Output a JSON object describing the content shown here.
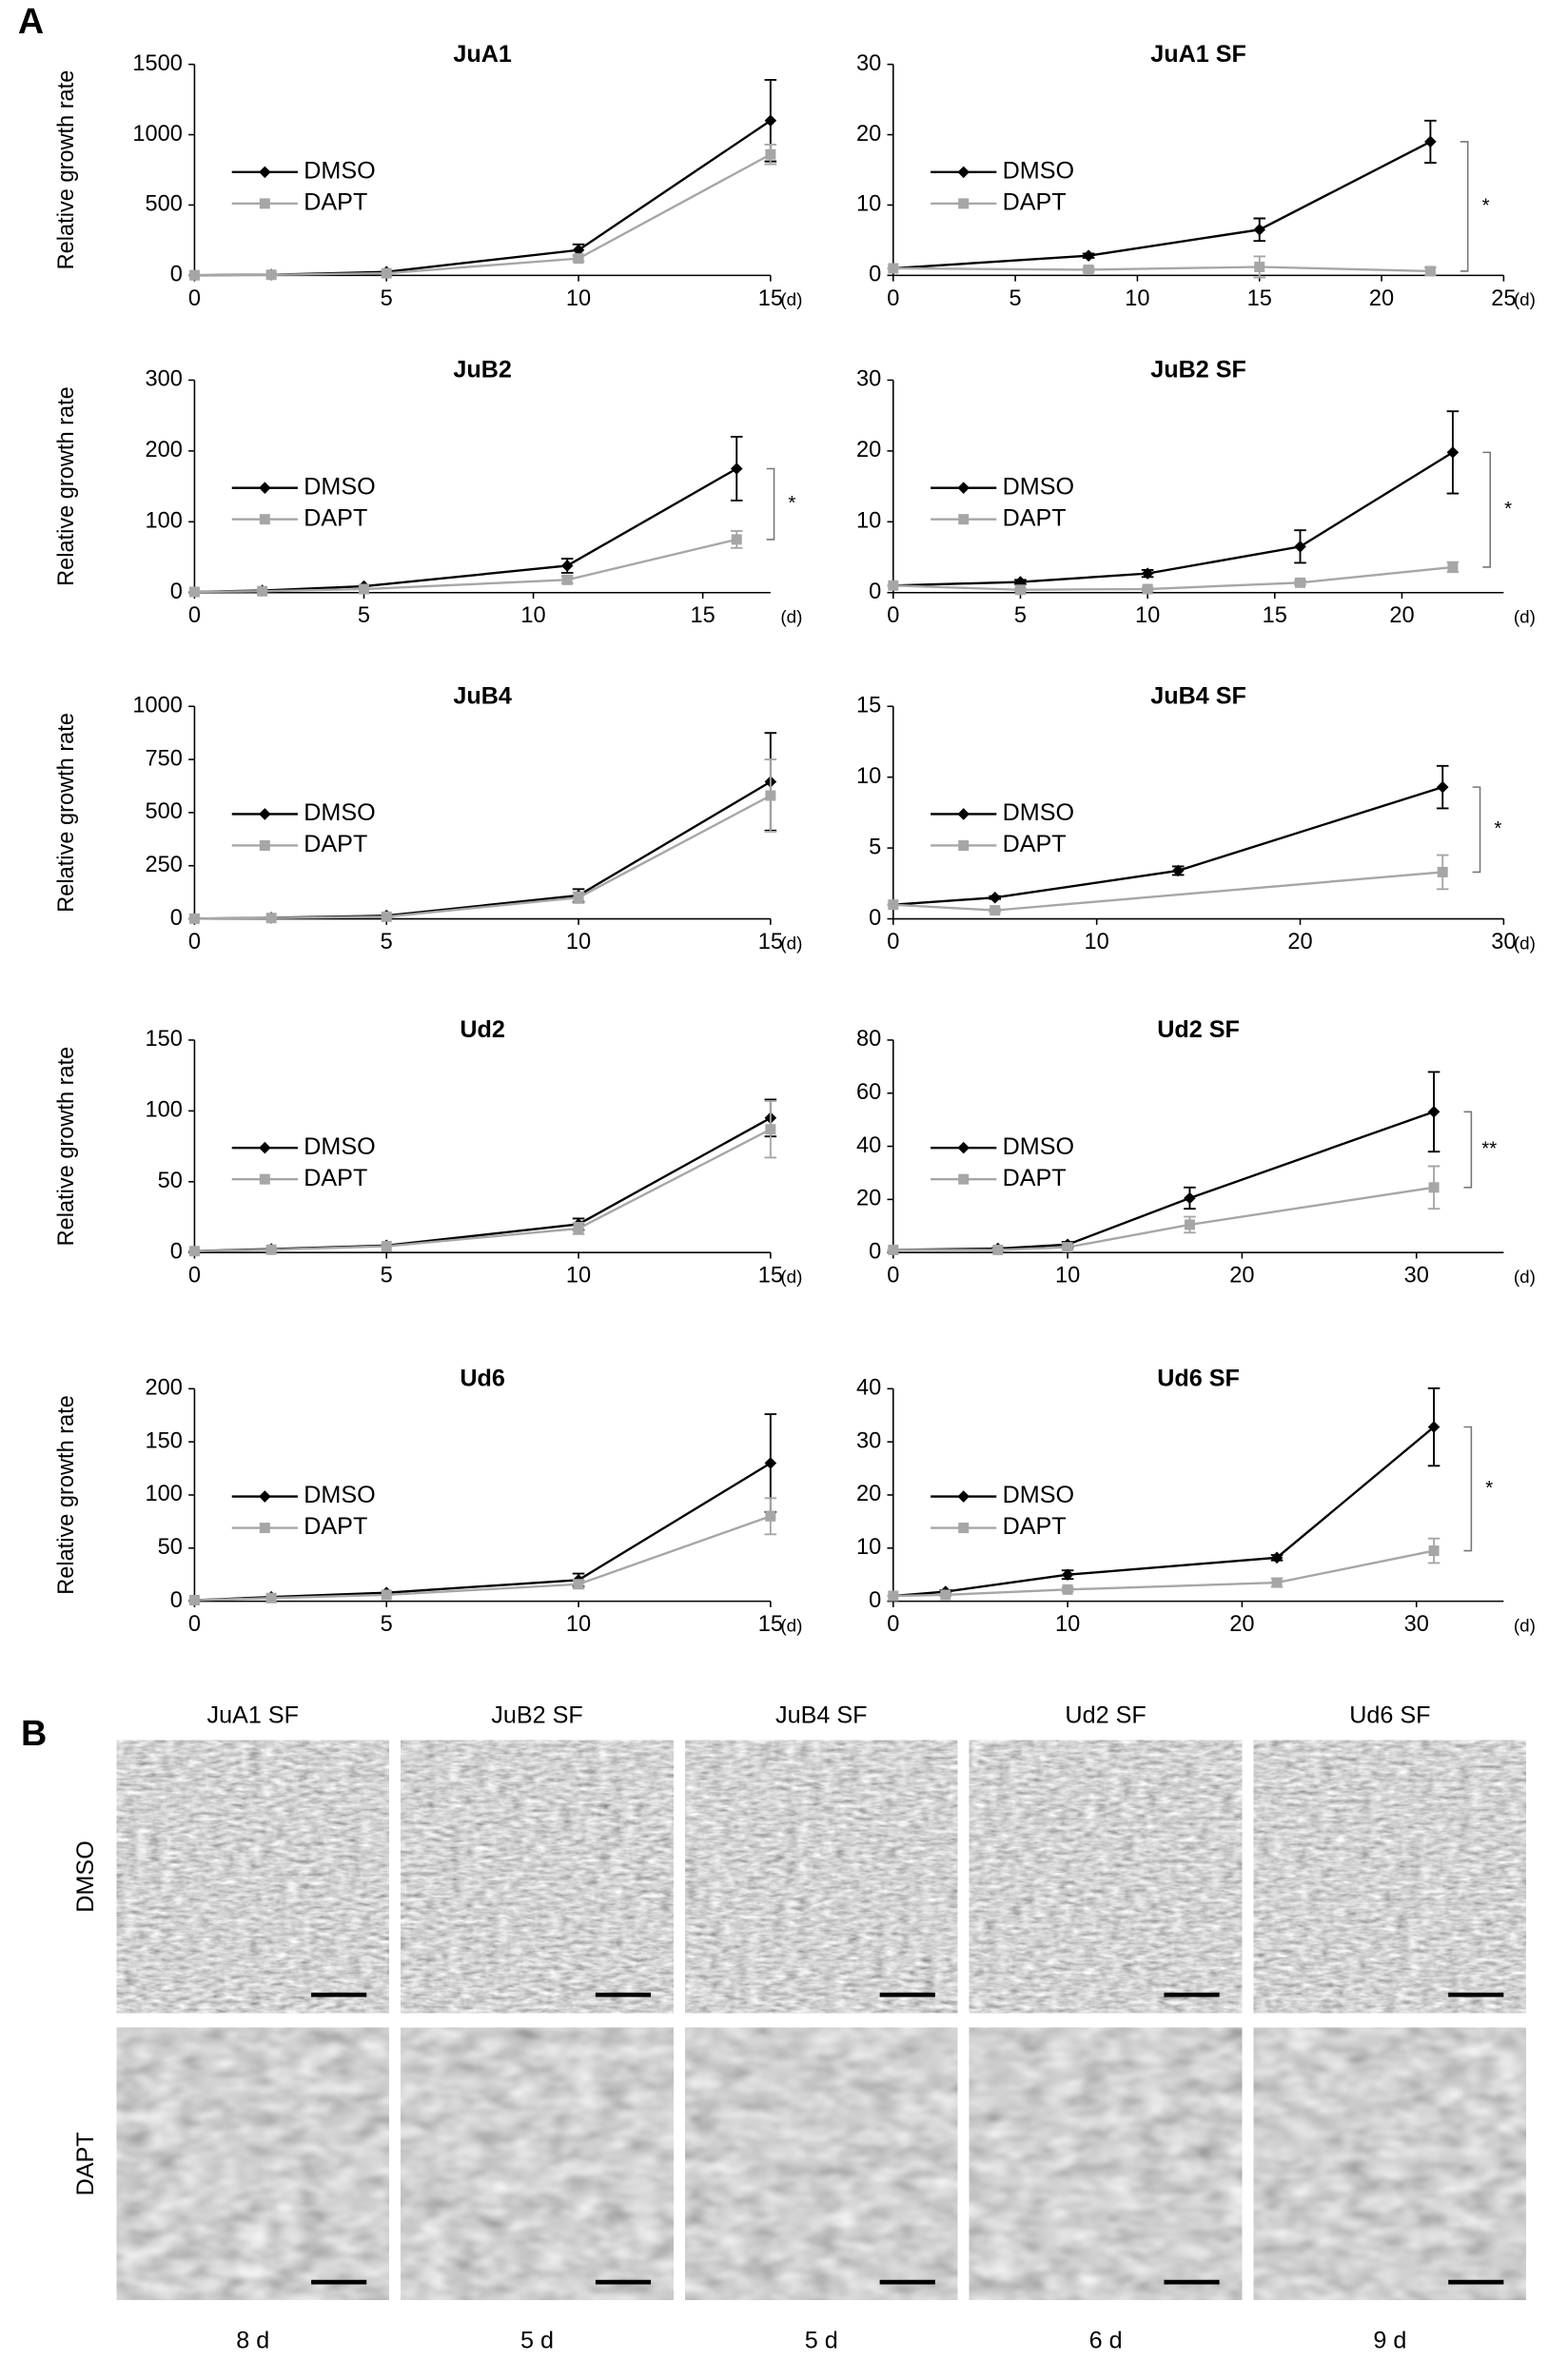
{
  "panel_labels": [
    "A",
    "B"
  ],
  "chart_data": [
    {
      "type": "line",
      "title": "JuA1",
      "ylabel": "Relative growth rate",
      "xlabel": "(d)",
      "xlim": [
        0,
        15
      ],
      "xticks": [
        0,
        5,
        10,
        15
      ],
      "ylim": [
        0,
        1500
      ],
      "yticks": [
        0,
        500,
        1000,
        1500
      ],
      "legend": "upper left",
      "series": [
        {
          "name": "DMSO",
          "color": "#000000",
          "marker": "diamond",
          "x": [
            0,
            2,
            5,
            10,
            15
          ],
          "values": [
            1,
            5,
            25,
            180,
            1100
          ],
          "error": [
            0,
            0,
            0,
            40,
            290
          ]
        },
        {
          "name": "DAPT",
          "color": "#a6a6a6",
          "marker": "square",
          "x": [
            0,
            2,
            5,
            10,
            15
          ],
          "values": [
            1,
            4,
            15,
            120,
            860
          ],
          "error": [
            0,
            0,
            0,
            20,
            70
          ]
        }
      ]
    },
    {
      "type": "line",
      "title": "JuA1 SF",
      "xlabel": "(d)",
      "xlim": [
        0,
        25
      ],
      "xticks": [
        0,
        5,
        10,
        15,
        20,
        25
      ],
      "ylim": [
        0,
        30
      ],
      "yticks": [
        0,
        10,
        20,
        30
      ],
      "legend": "upper left",
      "annotation": "*",
      "series": [
        {
          "name": "DMSO",
          "color": "#000000",
          "marker": "diamond",
          "x": [
            0,
            8,
            15,
            22
          ],
          "values": [
            1,
            2.8,
            6.5,
            19
          ],
          "error": [
            0,
            0.3,
            1.6,
            3
          ]
        },
        {
          "name": "DAPT",
          "color": "#a6a6a6",
          "marker": "square",
          "x": [
            0,
            8,
            15,
            22
          ],
          "values": [
            1,
            0.8,
            1.2,
            0.6
          ],
          "error": [
            0,
            0.3,
            1.5,
            0.5
          ]
        }
      ]
    },
    {
      "type": "line",
      "title": "JuB2",
      "ylabel": "Relative growth rate",
      "xlabel": "(d)",
      "xlim": [
        0,
        17
      ],
      "xticks": [
        0,
        5,
        10,
        15
      ],
      "ylim": [
        0,
        300
      ],
      "yticks": [
        0,
        100,
        200,
        300
      ],
      "legend": "upper left",
      "annotation": "*",
      "series": [
        {
          "name": "DMSO",
          "color": "#000000",
          "marker": "diamond",
          "x": [
            0,
            2,
            5,
            11,
            16
          ],
          "values": [
            1,
            3,
            9,
            38,
            175
          ],
          "error": [
            0,
            0,
            0,
            10,
            45
          ]
        },
        {
          "name": "DAPT",
          "color": "#a6a6a6",
          "marker": "square",
          "x": [
            0,
            2,
            5,
            11,
            16
          ],
          "values": [
            1,
            2,
            5,
            18,
            75
          ],
          "error": [
            0,
            0,
            0,
            5,
            12
          ]
        }
      ]
    },
    {
      "type": "line",
      "title": "JuB2 SF",
      "xlabel": "(d)",
      "xlim": [
        0,
        24
      ],
      "xticks": [
        0,
        5,
        10,
        15,
        20
      ],
      "ylim": [
        0,
        30
      ],
      "yticks": [
        0,
        10,
        20,
        30
      ],
      "legend": "upper left",
      "annotation": "*",
      "series": [
        {
          "name": "DMSO",
          "color": "#000000",
          "marker": "diamond",
          "x": [
            0,
            5,
            10,
            16,
            22
          ],
          "values": [
            1,
            1.5,
            2.7,
            6.5,
            19.8
          ],
          "error": [
            0,
            0.3,
            0.5,
            2.3,
            5.8
          ]
        },
        {
          "name": "DAPT",
          "color": "#a6a6a6",
          "marker": "square",
          "x": [
            0,
            5,
            10,
            16,
            22
          ],
          "values": [
            1,
            0.4,
            0.5,
            1.4,
            3.6
          ],
          "error": [
            0,
            0.2,
            0.2,
            0.3,
            0.7
          ]
        }
      ]
    },
    {
      "type": "line",
      "title": "JuB4",
      "ylabel": "Relative growth rate",
      "xlabel": "(d)",
      "xlim": [
        0,
        15
      ],
      "xticks": [
        0,
        5,
        10,
        15
      ],
      "ylim": [
        0,
        1000
      ],
      "yticks": [
        0,
        250,
        500,
        750,
        1000
      ],
      "legend": "upper left",
      "series": [
        {
          "name": "DMSO",
          "color": "#000000",
          "marker": "diamond",
          "x": [
            0,
            2,
            5,
            10,
            15
          ],
          "values": [
            1,
            5,
            15,
            110,
            645
          ],
          "error": [
            0,
            0,
            0,
            30,
            230
          ]
        },
        {
          "name": "DAPT",
          "color": "#a6a6a6",
          "marker": "square",
          "x": [
            0,
            2,
            5,
            10,
            15
          ],
          "values": [
            1,
            4,
            10,
            100,
            580
          ],
          "error": [
            0,
            0,
            0,
            25,
            170
          ]
        }
      ]
    },
    {
      "type": "line",
      "title": "JuB4 SF",
      "xlabel": "(d)",
      "xlim": [
        0,
        30
      ],
      "xticks": [
        0,
        10,
        20,
        30
      ],
      "ylim": [
        0,
        15
      ],
      "yticks": [
        0,
        5,
        10,
        15
      ],
      "legend": "upper left",
      "annotation": "*",
      "series": [
        {
          "name": "DMSO",
          "color": "#000000",
          "marker": "diamond",
          "x": [
            0,
            5,
            14,
            27
          ],
          "values": [
            1,
            1.5,
            3.4,
            9.3
          ],
          "error": [
            0,
            0.1,
            0.3,
            1.5
          ]
        },
        {
          "name": "DAPT",
          "color": "#a6a6a6",
          "marker": "square",
          "x": [
            0,
            5,
            27
          ],
          "values": [
            1,
            0.6,
            3.3
          ],
          "error": [
            0,
            0.1,
            1.2
          ]
        }
      ]
    },
    {
      "type": "line",
      "title": "Ud2",
      "ylabel": "Relative growth rate",
      "xlabel": "(d)",
      "xlim": [
        0,
        15
      ],
      "xticks": [
        0,
        5,
        10,
        15
      ],
      "ylim": [
        0,
        150
      ],
      "yticks": [
        0,
        50,
        100,
        150
      ],
      "legend": "upper left",
      "series": [
        {
          "name": "DMSO",
          "color": "#000000",
          "marker": "diamond",
          "x": [
            0,
            2,
            5,
            10,
            15
          ],
          "values": [
            1,
            2.5,
            5,
            20,
            95
          ],
          "error": [
            0,
            0,
            0,
            4,
            13
          ]
        },
        {
          "name": "DAPT",
          "color": "#a6a6a6",
          "marker": "square",
          "x": [
            0,
            2,
            5,
            10,
            15
          ],
          "values": [
            1,
            2,
            4.5,
            17,
            87
          ],
          "error": [
            0,
            0,
            0,
            4,
            20
          ]
        }
      ]
    },
    {
      "type": "line",
      "title": "Ud2 SF",
      "xlabel": "(d)",
      "xlim": [
        0,
        35
      ],
      "xticks": [
        0,
        10,
        20,
        30
      ],
      "ylim": [
        0,
        80
      ],
      "yticks": [
        0,
        20,
        40,
        60,
        80
      ],
      "legend": "upper left",
      "annotation": "**",
      "series": [
        {
          "name": "DMSO",
          "color": "#000000",
          "marker": "diamond",
          "x": [
            0,
            6,
            10,
            17,
            31
          ],
          "values": [
            1,
            1.5,
            3,
            20.5,
            53
          ],
          "error": [
            0,
            0.3,
            1,
            4,
            15
          ]
        },
        {
          "name": "DAPT",
          "color": "#a6a6a6",
          "marker": "square",
          "x": [
            0,
            6,
            10,
            17,
            31
          ],
          "values": [
            1,
            1,
            2,
            10.5,
            24.5
          ],
          "error": [
            0,
            0.3,
            0.8,
            3,
            8
          ]
        }
      ]
    },
    {
      "type": "line",
      "title": "Ud6",
      "ylabel": "Relative growth rate",
      "xlabel": "(d)",
      "xlim": [
        0,
        15
      ],
      "xticks": [
        0,
        5,
        10,
        15
      ],
      "ylim": [
        0,
        200
      ],
      "yticks": [
        0,
        50,
        100,
        150,
        200
      ],
      "legend": "upper left",
      "series": [
        {
          "name": "DMSO",
          "color": "#000000",
          "marker": "diamond",
          "x": [
            0,
            2,
            5,
            10,
            15
          ],
          "values": [
            1,
            4,
            8,
            20,
            130
          ],
          "error": [
            0,
            0,
            0,
            6,
            46
          ]
        },
        {
          "name": "DAPT",
          "color": "#a6a6a6",
          "marker": "square",
          "x": [
            0,
            2,
            5,
            10,
            15
          ],
          "values": [
            1,
            3,
            6,
            16,
            80
          ],
          "error": [
            0,
            0,
            0,
            4,
            17
          ]
        }
      ]
    },
    {
      "type": "line",
      "title": "Ud6 SF",
      "xlabel": "(d)",
      "xlim": [
        0,
        35
      ],
      "xticks": [
        0,
        10,
        20,
        30
      ],
      "ylim": [
        0,
        40
      ],
      "yticks": [
        0,
        10,
        20,
        30,
        40
      ],
      "legend": "upper left",
      "annotation": "*",
      "series": [
        {
          "name": "DMSO",
          "color": "#000000",
          "marker": "diamond",
          "x": [
            0,
            3,
            10,
            22,
            31
          ],
          "values": [
            1,
            1.8,
            5,
            8.2,
            32.8
          ],
          "error": [
            0,
            0.3,
            0.8,
            0.5,
            7.3
          ]
        },
        {
          "name": "DAPT",
          "color": "#a6a6a6",
          "marker": "square",
          "x": [
            0,
            3,
            10,
            22,
            31
          ],
          "values": [
            1,
            1.2,
            2.2,
            3.5,
            9.5
          ],
          "error": [
            0,
            0.2,
            0.4,
            0.8,
            2.3
          ]
        }
      ]
    }
  ],
  "micrographs": {
    "columns": [
      "JuA1 SF",
      "JuB2 SF",
      "JuB4 SF",
      "Ud2 SF",
      "Ud6 SF"
    ],
    "rows": [
      "DMSO",
      "DAPT"
    ],
    "durations": [
      "8 d",
      "5 d",
      "5 d",
      "6 d",
      "9 d"
    ]
  }
}
